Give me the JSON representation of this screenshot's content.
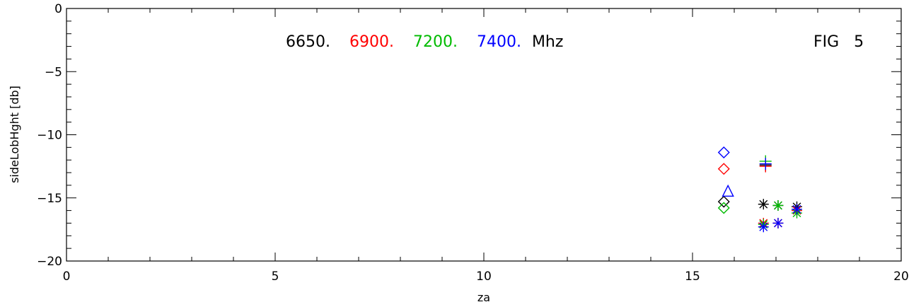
{
  "chart_data": {
    "type": "scatter",
    "xlabel": "za",
    "ylabel": "sideLobHght [db]",
    "xlim": [
      0,
      20
    ],
    "ylim": [
      -20,
      0
    ],
    "x_ticks": [
      0,
      5,
      10,
      15,
      20
    ],
    "y_ticks": [
      0,
      -5,
      -10,
      -15,
      -20
    ],
    "x_tick_labels": [
      "0",
      "5",
      "10",
      "15",
      "20"
    ],
    "y_tick_labels": [
      "0",
      "−5",
      "−10",
      "−15",
      "−20"
    ],
    "grid": false,
    "annotations": {
      "figure_label": "FIG   5",
      "frequency_legend": [
        {
          "label": "6650.",
          "color": "#000000"
        },
        {
          "label": "6900.",
          "color": "#ff0000"
        },
        {
          "label": "7200.",
          "color": "#00bb00"
        },
        {
          "label": "7400.",
          "color": "#0000ff"
        }
      ],
      "unit_label": "Mhz"
    },
    "series": [
      {
        "color": "#000000",
        "points": [
          {
            "x": 15.75,
            "y": -15.3,
            "marker": "diamond"
          },
          {
            "x": 16.7,
            "y": -15.5,
            "marker": "asterisk"
          },
          {
            "x": 17.05,
            "y": -15.6,
            "marker": "asterisk"
          },
          {
            "x": 17.5,
            "y": -15.7,
            "marker": "asterisk"
          },
          {
            "x": 16.75,
            "y": -12.4,
            "marker": "plus"
          }
        ]
      },
      {
        "color": "#ff0000",
        "points": [
          {
            "x": 15.75,
            "y": -12.7,
            "marker": "diamond"
          },
          {
            "x": 16.7,
            "y": -17.0,
            "marker": "asterisk"
          },
          {
            "x": 17.05,
            "y": -17.0,
            "marker": "asterisk"
          },
          {
            "x": 17.5,
            "y": -16.0,
            "marker": "asterisk"
          },
          {
            "x": 16.75,
            "y": -12.5,
            "marker": "plus"
          }
        ]
      },
      {
        "color": "#00bb00",
        "points": [
          {
            "x": 15.75,
            "y": -15.8,
            "marker": "diamond"
          },
          {
            "x": 16.7,
            "y": -17.1,
            "marker": "asterisk"
          },
          {
            "x": 17.05,
            "y": -15.6,
            "marker": "asterisk"
          },
          {
            "x": 17.5,
            "y": -16.2,
            "marker": "asterisk"
          },
          {
            "x": 16.75,
            "y": -12.1,
            "marker": "plus"
          }
        ]
      },
      {
        "color": "#0000ff",
        "points": [
          {
            "x": 15.75,
            "y": -11.4,
            "marker": "diamond"
          },
          {
            "x": 15.85,
            "y": -14.5,
            "marker": "triangle"
          },
          {
            "x": 16.7,
            "y": -17.3,
            "marker": "asterisk"
          },
          {
            "x": 17.05,
            "y": -17.0,
            "marker": "asterisk"
          },
          {
            "x": 17.5,
            "y": -15.9,
            "marker": "asterisk"
          },
          {
            "x": 16.75,
            "y": -12.3,
            "marker": "plus"
          }
        ]
      }
    ]
  }
}
